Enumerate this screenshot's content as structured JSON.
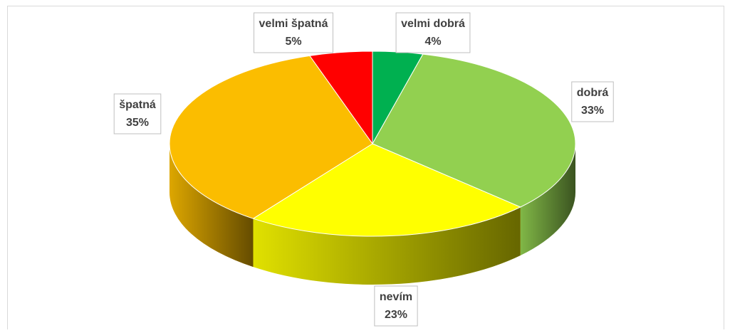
{
  "chart_data": {
    "type": "pie",
    "three_d": true,
    "categories": [
      "velmi dobrá",
      "dobrá",
      "nevím",
      "špatná",
      "velmi špatná"
    ],
    "values": [
      4,
      33,
      23,
      35,
      5
    ],
    "value_labels": [
      "4%",
      "33%",
      "23%",
      "35%",
      "5%"
    ],
    "colors": [
      "#00b050",
      "#92d050",
      "#ffff00",
      "#fbbd00",
      "#ff0000"
    ]
  }
}
